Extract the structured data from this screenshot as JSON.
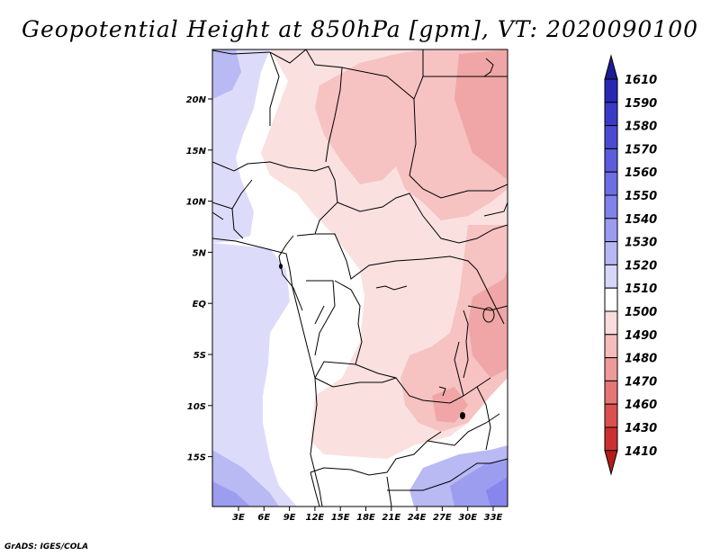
{
  "title": "Geopotential Height at 850hPa [gpm], VT: 2020090100",
  "footer": "GrADS: IGES/COLA",
  "map": {
    "region": "Central Africa",
    "lon_ticks": [
      "3E",
      "6E",
      "9E",
      "12E",
      "15E",
      "18E",
      "21E",
      "24E",
      "27E",
      "30E",
      "33E"
    ],
    "lat_ticks": [
      "20N",
      "15N",
      "10N",
      "5N",
      "EQ",
      "5S",
      "10S",
      "15S"
    ]
  },
  "colorbar": {
    "levels": [
      "1610",
      "1590",
      "1580",
      "1570",
      "1560",
      "1550",
      "1540",
      "1530",
      "1520",
      "1510",
      "1500",
      "1490",
      "1480",
      "1470",
      "1460",
      "1430",
      "1410"
    ],
    "colors": [
      "#1c1c96",
      "#2828b4",
      "#3a3ac8",
      "#4b4bd2",
      "#5c5cdc",
      "#6e6ee4",
      "#8282ec",
      "#9b9bf0",
      "#b7b7f6",
      "#d6d6fa",
      "#ffffff",
      "#fbdcdc",
      "#f5bcbc",
      "#ee9a9a",
      "#e67676",
      "#dc5050",
      "#cc3030",
      "#b41c1c"
    ]
  },
  "colors": {
    "frame": "#000000",
    "boundary": "#000000"
  }
}
